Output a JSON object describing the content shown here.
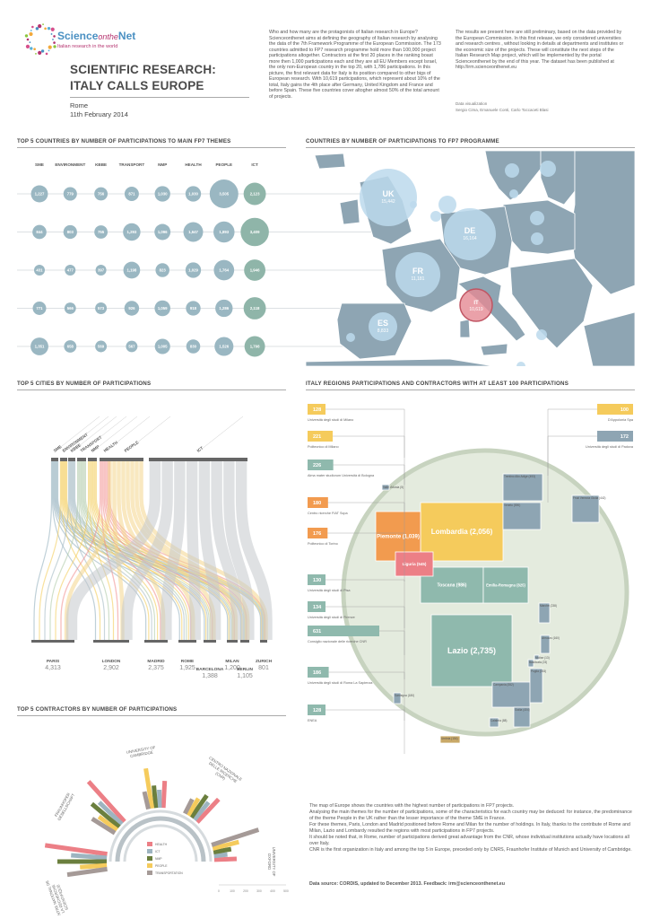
{
  "header": {
    "logo_title": "ScienceontheNet",
    "logo_title_a": "Science",
    "logo_title_b": "onthe",
    "logo_title_c": "Net",
    "logo_subtitle": "Italian research in the world",
    "title_line1": "SCIENTIFIC RESEARCH:",
    "title_line2": "ITALY CALLS EUROPE",
    "place": "Rome",
    "date": "11th February 2014"
  },
  "intro_text": "Who and how many are the protagonists of Italian research in Europe? Scienceonthenet aims at defining the geography of Italian research by analysing the data of the 7th Framework Programme of the European Commission. The 173 countries admitted to FP7 research programme hold more than 100,000 project participations altogether. Contractors at the first 20 places in the ranking boast more then 1,000 participations each and they are all EU Members except Israel, the only non-European country in the top 20, with 1,786 participations. In this picture, the first relevant data for Italy is its position compared to other bigs of European research. With 10,619 participations, which represent about 10% of the total, Italy gains the 4th place after Germany, United Kingdom and France and before Spain. These five countries cover altogher almost 50% of the total amount of projects.",
  "notes_text": "The results we present here are still preliminary, based on the data provided by the European Commission. In this first release, we only considered universities and research centres , without looking in details at departments and institutes or the economic size of the projects. These will constitute the next steps of the Italian Research Map project, which will be implemented by the portal Scienceonthenet by the end of this year. The dataset has been published at http://irm.scienceonthenet.eu",
  "credits_label": "Data visualization",
  "credits_names": "Sergio Cima, Emanuele Conti, Carlo Toccaceti Blasi",
  "sections": {
    "themes": "TOP 5 COUNTRIES BY NUMBER OF PARTICIPATIONS TO MAIN FP7 THEMES",
    "map": "COUNTRIES BY NUMBER OF PARTICIPATIONS TO FP7 PROGRAMME",
    "cities": "TOP 5 CITIES BY NUMBER OF PARTICIPATIONS",
    "regions": "ITALY REGIONS PARTICIPATIONS AND CONTRACTORS WITH AT LEAST 100 PARTICIPATIONS",
    "contractors": "TOP 5 CONTRACTORS BY NUMBER OF PARTICIPATIONS"
  },
  "chart_data": [
    {
      "type": "scatter",
      "id": "themes",
      "columns": [
        "SME",
        "ENVIRONMENT",
        "KBBE",
        "TRANSPORT",
        "NMP",
        "HEALTH",
        "PEOPLE",
        "ICT"
      ],
      "series": [
        {
          "values": [
            1227,
            779,
            756,
            871,
            1030,
            1030,
            3505,
            2123
          ],
          "highlight": 7
        },
        {
          "values": [
            844,
            803,
            755,
            1293,
            1096,
            1647,
            1893,
            3409
          ],
          "highlight": 7
        },
        {
          "values": [
            431,
            477,
            397,
            1198,
            823,
            1029,
            1764,
            1946
          ],
          "highlight": 7
        },
        {
          "values": [
            771,
            566,
            573,
            926,
            1059,
            918,
            1286,
            2118
          ],
          "highlight": 7
        },
        {
          "values": [
            1351,
            658,
            569,
            567,
            1005,
            830,
            1526,
            1798
          ],
          "highlight": 7
        }
      ]
    },
    {
      "type": "scatter",
      "id": "map",
      "countries": [
        {
          "code": "UK",
          "value": "15,442"
        },
        {
          "code": "DE",
          "value": "16,164"
        },
        {
          "code": "FR",
          "value": "11,181"
        },
        {
          "code": "IT",
          "value": "10,619"
        },
        {
          "code": "ES",
          "value": "8,833"
        }
      ]
    },
    {
      "type": "area",
      "id": "cities",
      "themes": [
        "SME",
        "ENVIRONMENT",
        "KBBE",
        "TRANSPORT",
        "NMP",
        "HEALTH",
        "PEOPLE",
        "ICT"
      ],
      "theme_colors": [
        "#8aa9b8",
        "#f2c94c",
        "#9db4c0",
        "#a7c4a0",
        "#f2c94c",
        "#f08a8a",
        "#f4d58d",
        "#c4c9cc"
      ],
      "cities": [
        {
          "name": "PARIS",
          "value": "4,313"
        },
        {
          "name": "LONDON",
          "value": "2,902"
        },
        {
          "name": "MADRID",
          "value": "2,375"
        },
        {
          "name": "ROME",
          "value": "1,925"
        },
        {
          "name": "BARCELONA",
          "value": "1,388"
        },
        {
          "name": "MILAN",
          "value": "1,200"
        },
        {
          "name": "BERLIN",
          "value": "1,105"
        },
        {
          "name": "ZURICH",
          "value": "801"
        }
      ]
    },
    {
      "type": "table",
      "id": "regions",
      "regions": [
        {
          "name": "Lombardia (2,056)",
          "color": "#f5cb5c"
        },
        {
          "name": "Lazio (2,735)",
          "color": "#8fb9ad"
        },
        {
          "name": "Piemonte (1,039)",
          "color": "#f29b4f"
        },
        {
          "name": "Toscana (986)",
          "color": "#8fb9ad"
        },
        {
          "name": "Emilia-Romagna (825)",
          "color": "#8fb9ad"
        },
        {
          "name": "Liguria (545)",
          "color": "#ec7f86"
        },
        {
          "name": "Veneto (590)",
          "color": "#8ea5b3"
        },
        {
          "name": "Campania (552)",
          "color": "#8ea5b3"
        },
        {
          "name": "Friuli Venezia Giulia (442)",
          "color": "#8ea5b3"
        },
        {
          "name": "Trentino Alto Adige (493)",
          "color": "#8ea5b3"
        },
        {
          "name": "Puglia (353)",
          "color": "#8ea5b3"
        },
        {
          "name": "Sicilia (404)",
          "color": "#8ea5b3"
        },
        {
          "name": "Marche (238)",
          "color": "#8ea5b3"
        },
        {
          "name": "Abruzzo (160)",
          "color": "#8ea5b3"
        },
        {
          "name": "Sardegna (180)",
          "color": "#8ea5b3"
        },
        {
          "name": "Calabria (88)",
          "color": "#8ea5b3"
        },
        {
          "name": "Umbria (154)",
          "color": "#8ea5b3"
        },
        {
          "name": "Valle d'Aosta (5)",
          "color": "#8ea5b3"
        },
        {
          "name": "Basilicata (23)",
          "color": "#8ea5b3"
        },
        {
          "name": "Molise (13)",
          "color": "#8ea5b3"
        }
      ],
      "contractors": [
        {
          "value": "128",
          "name": "Università degli studi di Milano",
          "color": "#f5cb5c",
          "side": "left"
        },
        {
          "value": "221",
          "name": "Politecnico di Milano",
          "color": "#f5cb5c",
          "side": "left"
        },
        {
          "value": "226",
          "name": "Alma mater studiorum Università di Bologna",
          "color": "#8fb9ad",
          "side": "left"
        },
        {
          "value": "180",
          "name": "Centro ricerche FIAT Scpa",
          "color": "#f29b4f",
          "side": "left"
        },
        {
          "value": "176",
          "name": "Politecnico di Torino",
          "color": "#f29b4f",
          "side": "left"
        },
        {
          "value": "130",
          "name": "Università degli studi di Pisa",
          "color": "#8fb9ad",
          "side": "left"
        },
        {
          "value": "134",
          "name": "Università degli studi di Firenze",
          "color": "#8fb9ad",
          "side": "left"
        },
        {
          "value": "631",
          "name": "Consiglio nazionale delle ricerche CNR",
          "color": "#8fb9ad",
          "side": "left"
        },
        {
          "value": "186",
          "name": "Università degli studi di Roma La Sapienza",
          "color": "#8fb9ad",
          "side": "left"
        },
        {
          "value": "128",
          "name": "ENEA",
          "color": "#8fb9ad",
          "side": "left"
        },
        {
          "value": "100",
          "name": "D'Appolonia Spa",
          "color": "#f5cb5c",
          "side": "right"
        },
        {
          "value": "172",
          "name": "Università degli studi di Padova",
          "color": "#8ea5b3",
          "side": "right"
        }
      ]
    },
    {
      "type": "bar",
      "id": "contractors",
      "contractors": [
        {
          "name": "CENTRE NATIONAL DE LA RECHERCHE SCIENTIFIQUE"
        },
        {
          "name": "FRAUNHOFER GESELLSCHAFT"
        },
        {
          "name": "UNIVERSITY OF CAMBRIDGE"
        },
        {
          "name": "CENTRO NAZIONALE DELLE RICERCHE (CNR)"
        },
        {
          "name": "UNIVERSITY OF OXFORD"
        }
      ],
      "legend": [
        {
          "label": "HEALTH",
          "color": "#ec7f86"
        },
        {
          "label": "ICT",
          "color": "#9db4c0"
        },
        {
          "label": "NMP",
          "color": "#6b7f3e"
        },
        {
          "label": "PEOPLE",
          "color": "#f5cb5c"
        },
        {
          "label": "TRANSPORTATION",
          "color": "#a59a97"
        }
      ],
      "axis_ticks": [
        "0",
        "100",
        "200",
        "300",
        "400",
        "500"
      ]
    }
  ],
  "footer": {
    "paragraph1": "The map of Europe shows the countries with the highest number of participations in FP7 projects.",
    "paragraph2": "Analysing the main themes for the number of participations, some of the characteristics for each country may be deduced: for instance, the predominance of the theme People in the UK rather than the lesser importance of the theme SME in France.",
    "paragraph3": "For these themes, Paris, London and Madrid positioned before Rome and Milan for the number of holdings. In Italy, thanks to the contribute of Rome and Milan, Lazio and Lombardy resulted the regions with most participations in FP7 projects.",
    "paragraph4": "It should be noted that, in Rome, number of participations derived great advantage from the CNR, whose individual institutions actually have locations all over Italy.",
    "paragraph5": "CNR is the first organization in Italy and among the top 5 in Europe, preceded only by CNRS, Fraunhofer Institute of Munich and University of Cambridge.",
    "source": "Data source: CORDIS, updated to December 2013. Feedback: irm@scienceonthenet.eu"
  },
  "colors": {
    "accent_blue": "#5aa7cf",
    "accent_magenta": "#b5336f",
    "bubble_blue": "#9ab7c2",
    "bubble_green": "#8fb5a9",
    "map_sea": "#ffffff",
    "map_land": "#8ea5b3"
  }
}
